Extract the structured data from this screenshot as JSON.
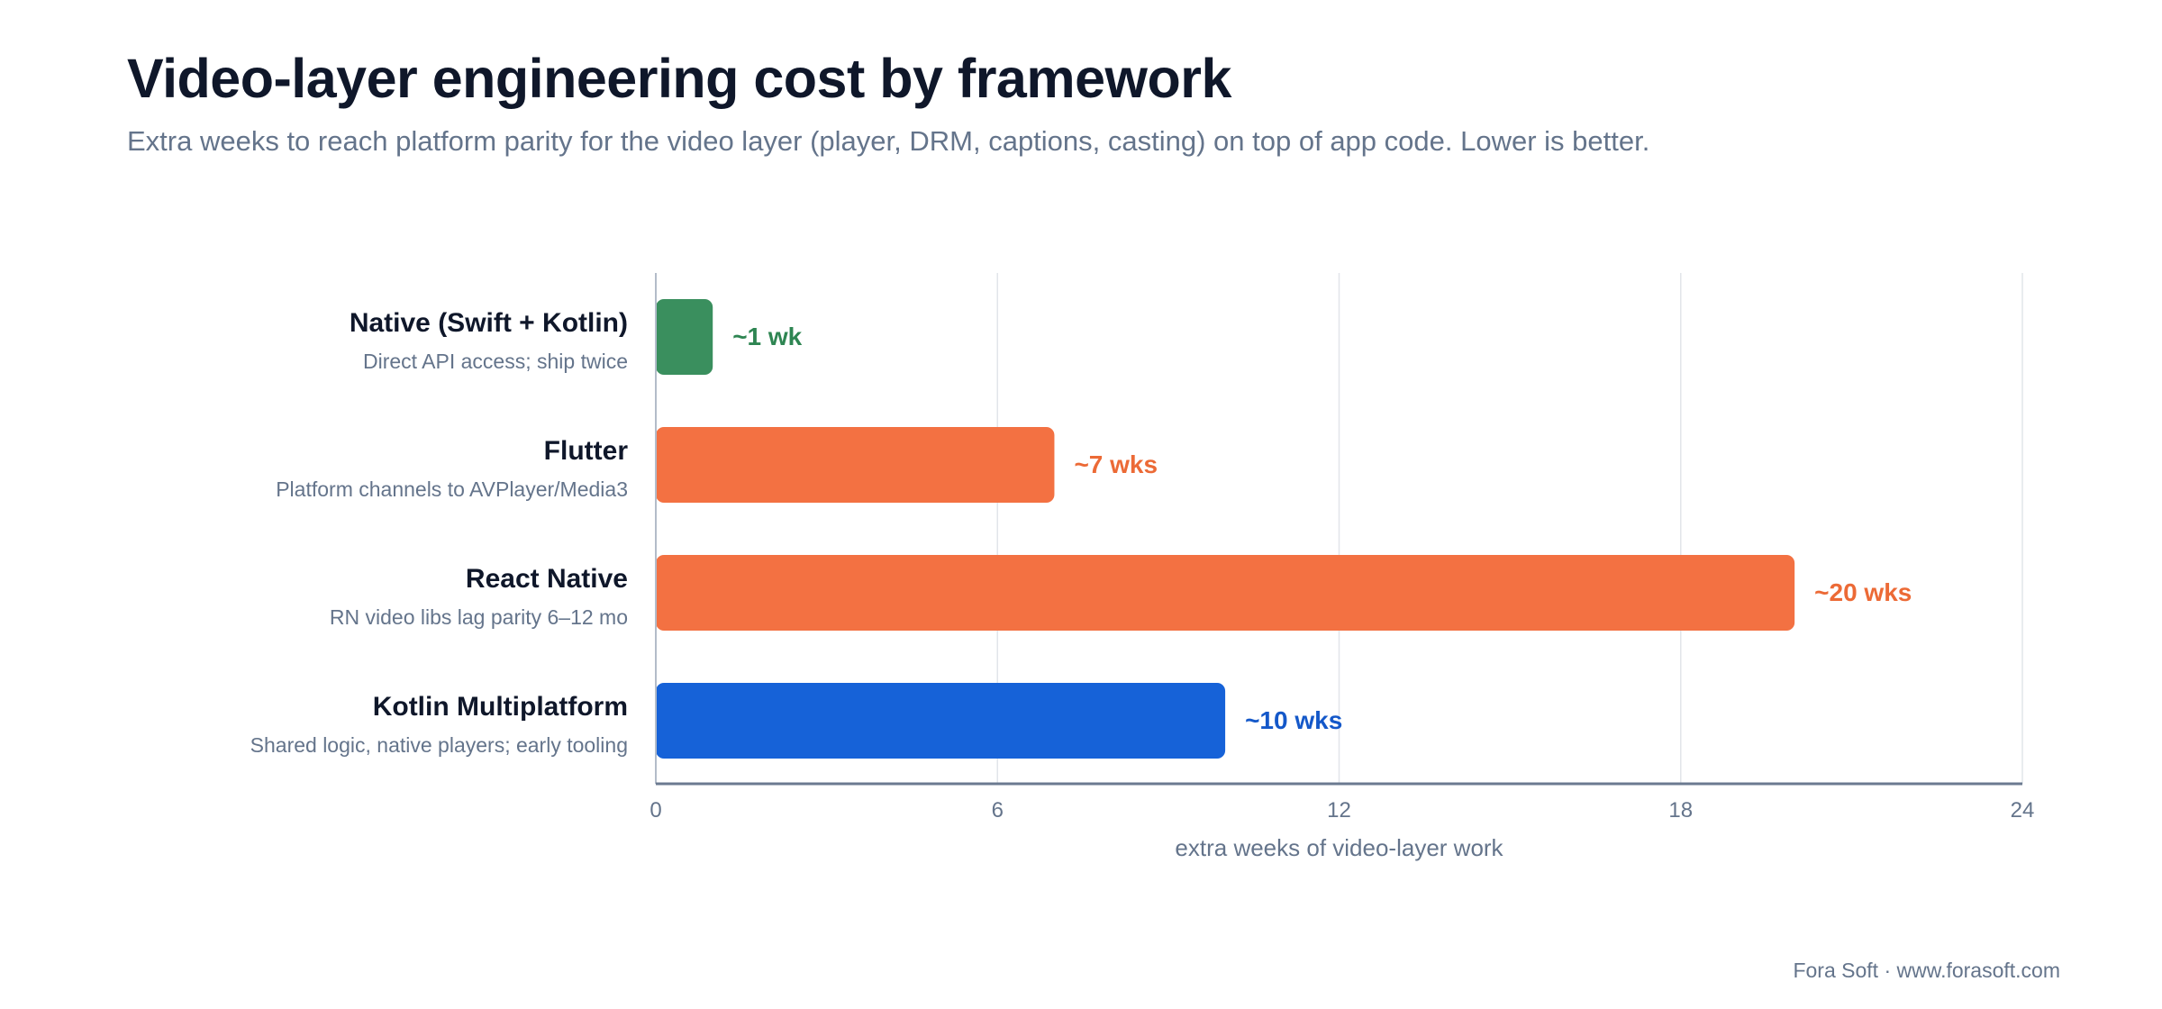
{
  "chart_data": {
    "type": "bar",
    "orientation": "horizontal",
    "title": "Video-layer engineering cost by framework",
    "subtitle": "Extra weeks to reach platform parity for the video layer (player, DRM, captions, casting) on top of app code. Lower is better.",
    "xlabel": "extra weeks of video-layer work",
    "ylabel": "",
    "xlim": [
      0,
      24
    ],
    "xticks": [
      0,
      6,
      12,
      18,
      24
    ],
    "grid": "vertical",
    "categories": [
      {
        "name": "Native (Swift + Kotlin)",
        "note": "Direct API access; ship twice",
        "value": 1,
        "label": "~1 wk",
        "color": "#3a8f5e",
        "label_color": "#2e8552"
      },
      {
        "name": "Flutter",
        "note": "Platform channels to AVPlayer/Media3",
        "value": 7,
        "label": "~7 wks",
        "color": "#f37142",
        "label_color": "#ec6a36"
      },
      {
        "name": "React Native",
        "note": "RN video libs lag parity 6–12 mo",
        "value": 20,
        "label": "~20 wks",
        "color": "#f37142",
        "label_color": "#ec6a36"
      },
      {
        "name": "Kotlin Multiplatform",
        "note": "Shared logic, native players; early tooling",
        "value": 10,
        "label": "~10 wks",
        "color": "#1662d8",
        "label_color": "#1458c9"
      }
    ]
  },
  "footer": "Fora Soft · www.forasoft.com",
  "colors": {
    "title": "#0f172a",
    "muted": "#64748b",
    "grid": "#e2e5ea",
    "axis": "#6b7a90"
  }
}
